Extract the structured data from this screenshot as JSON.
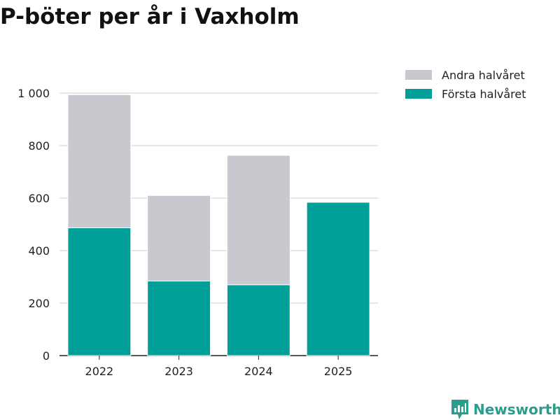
{
  "chart_data": {
    "type": "bar",
    "stacked": true,
    "title": "P-böter per år i Vaxholm",
    "xlabel": "",
    "ylabel": "",
    "categories": [
      "2022",
      "2023",
      "2024",
      "2025"
    ],
    "series": [
      {
        "name": "Första halvåret",
        "values": [
          487,
          284,
          270,
          584
        ],
        "color": "#00a098"
      },
      {
        "name": "Andra halvåret",
        "values": [
          507,
          326,
          493,
          0
        ],
        "color": "#c8c8cf"
      }
    ],
    "ylim": [
      0,
      1000
    ],
    "yticks": [
      0,
      200,
      400,
      600,
      800,
      1000
    ],
    "ytick_labels": [
      "0",
      "200",
      "400",
      "600",
      "800",
      "1 000"
    ],
    "grid": true,
    "legend_position": "top-right",
    "legend": [
      "Andra halvåret",
      "Första halvåret"
    ]
  },
  "branding": {
    "logo_text": "Newsworthy",
    "logo_color": "#2a9d8f"
  }
}
